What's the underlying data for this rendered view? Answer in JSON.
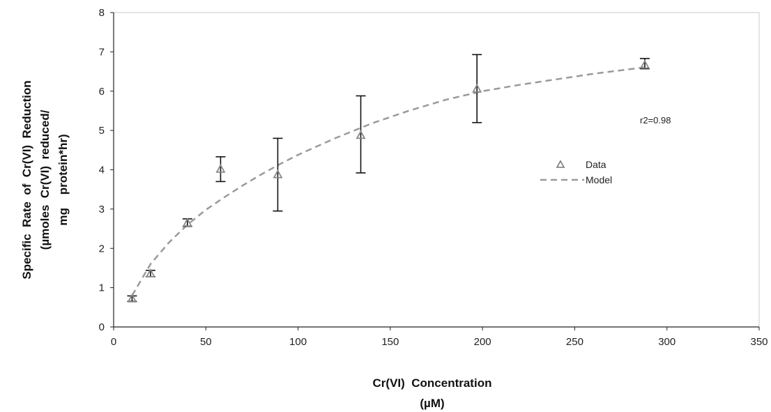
{
  "chart_data": {
    "type": "scatter",
    "title": "",
    "xlabel": [
      "Cr(VI)  Concentration",
      "(µM)"
    ],
    "ylabel": [
      "Specific  Rate  of  Cr(VI)  Reduction",
      "(µmoles  Cr(VI)  reduced/",
      "mg    protein*hr)"
    ],
    "xlim": [
      0,
      350
    ],
    "ylim": [
      0,
      8
    ],
    "xticks": [
      0,
      50,
      100,
      150,
      200,
      250,
      300,
      350
    ],
    "yticks": [
      0,
      1,
      2,
      3,
      4,
      5,
      6,
      7,
      8
    ],
    "grid": false,
    "legend_position": "middle-right",
    "series": [
      {
        "name": "Data",
        "style": "triangle-marker",
        "color": "#888888",
        "x": [
          10,
          20,
          40,
          58,
          89,
          134,
          197,
          288
        ],
        "y": [
          0.72,
          1.36,
          2.65,
          4.02,
          3.88,
          4.88,
          6.06,
          6.67
        ],
        "err_low": [
          0.65,
          1.28,
          2.56,
          3.7,
          2.95,
          3.92,
          5.2,
          6.57
        ],
        "err_high": [
          0.79,
          1.44,
          2.75,
          4.33,
          4.8,
          5.88,
          6.93,
          6.83
        ]
      },
      {
        "name": "Model",
        "style": "dashed-line",
        "color": "#9a9a9a",
        "x": [
          10,
          20,
          30,
          40,
          50,
          60,
          70,
          80,
          90,
          100,
          120,
          140,
          160,
          180,
          200,
          220,
          240,
          260,
          280,
          290
        ],
        "y": [
          0.8,
          1.6,
          2.15,
          2.6,
          2.98,
          3.3,
          3.6,
          3.88,
          4.14,
          4.38,
          4.8,
          5.18,
          5.5,
          5.78,
          6.0,
          6.16,
          6.3,
          6.44,
          6.56,
          6.62
        ]
      }
    ],
    "annotations": [
      {
        "text": "r2=0.98"
      }
    ]
  }
}
